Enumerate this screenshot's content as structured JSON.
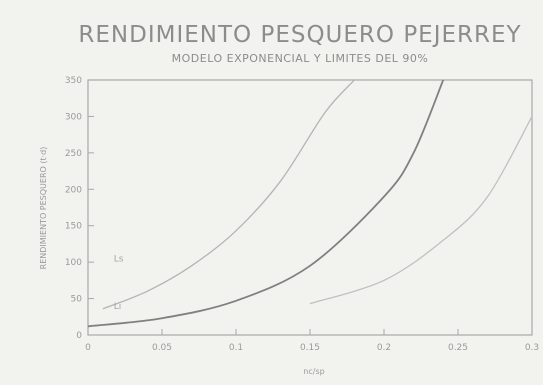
{
  "chart_data": {
    "type": "line",
    "title": "RENDIMIENTO PESQUERO PEJERREY",
    "subtitle": "MODELO EXPONENCIAL Y LIMITES DEL 90%",
    "xlabel": "nc/sp",
    "ylabel": "RENDIMIENTO PESQUERO (t·d)",
    "xlim": [
      0,
      0.3
    ],
    "ylim": [
      0,
      350
    ],
    "xticks": [
      0,
      0.05,
      0.1,
      0.15,
      0.2,
      0.25,
      0.3
    ],
    "xtick_labels": [
      "0",
      "0.05",
      "0.1",
      "0.15",
      "0.2",
      "0.25",
      "0.3"
    ],
    "yticks": [
      0,
      50,
      100,
      150,
      200,
      250,
      300,
      350
    ],
    "grid": false,
    "series": [
      {
        "name": "Ls",
        "color": "#b4b4b4",
        "x": [
          0.01,
          0.04,
          0.07,
          0.1,
          0.13,
          0.16,
          0.18
        ],
        "y": [
          36,
          60,
          95,
          143,
          211,
          305,
          350
        ]
      },
      {
        "name": "",
        "color": "#808080",
        "x": [
          0,
          0.05,
          0.1,
          0.15,
          0.2,
          0.22,
          0.24
        ],
        "y": [
          12,
          23,
          47,
          95,
          190,
          250,
          350
        ]
      },
      {
        "name": "",
        "color": "#c0c0c0",
        "x": [
          0.15,
          0.2,
          0.24,
          0.27,
          0.3
        ],
        "y": [
          43,
          75,
          130,
          190,
          300
        ]
      }
    ],
    "annotations": [
      {
        "text": "Ls",
        "x": 0.012,
        "y": 105
      },
      {
        "text": "Li",
        "x": 0.012,
        "y": 40
      }
    ]
  }
}
